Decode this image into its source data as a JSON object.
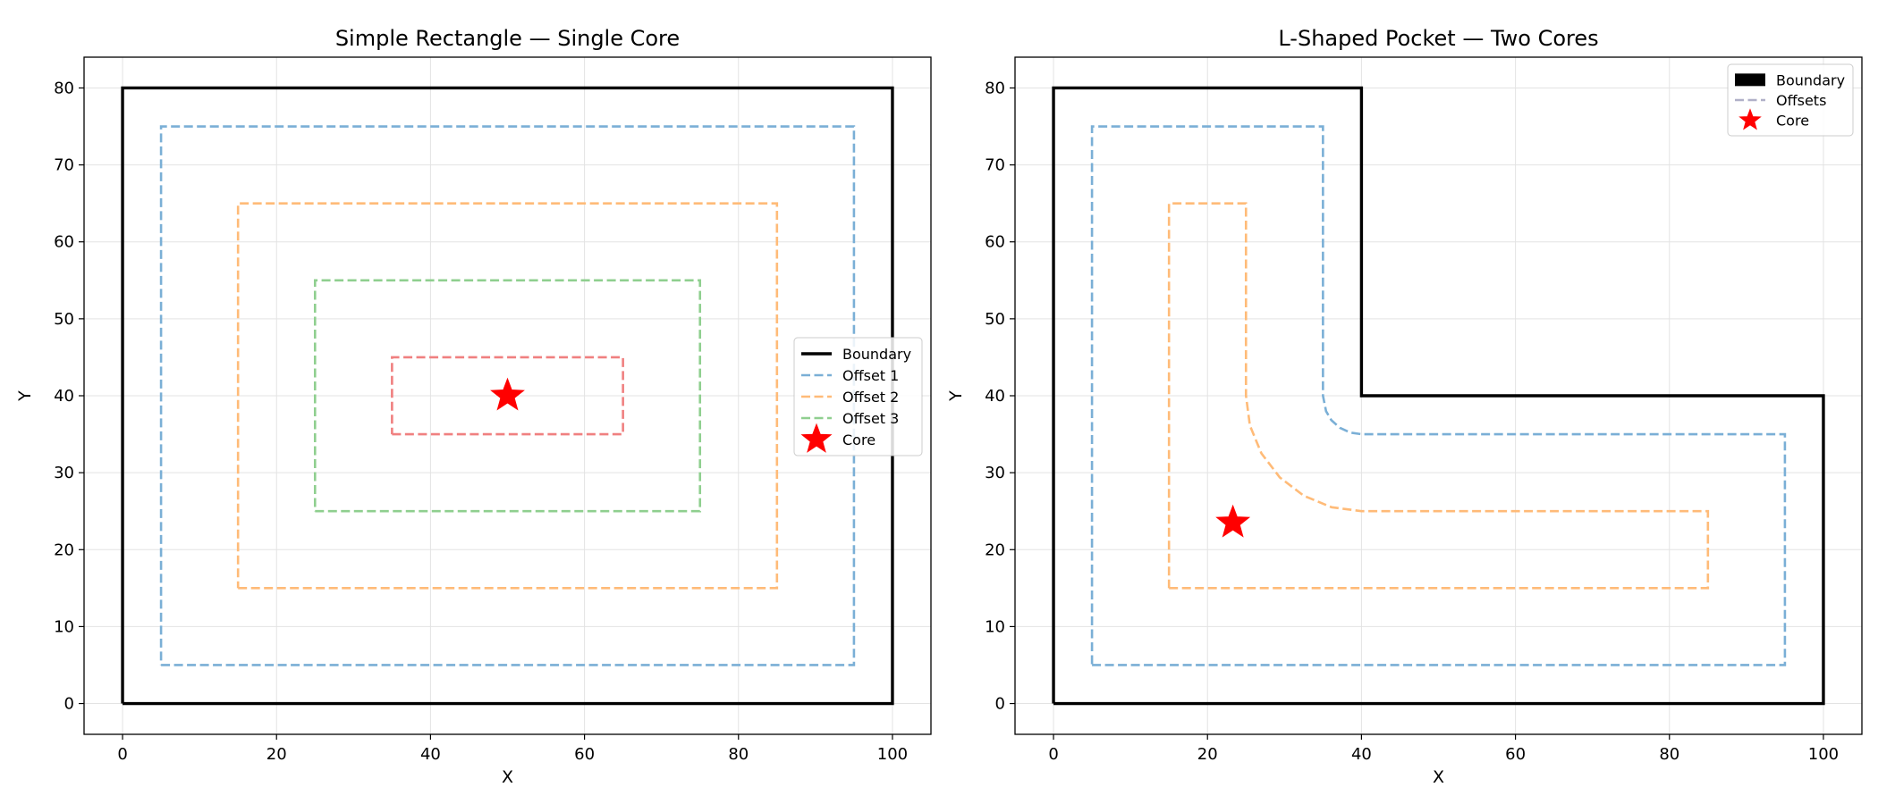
{
  "chart_data": [
    {
      "type": "line",
      "title": "Simple Rectangle — Single Core",
      "xlabel": "X",
      "ylabel": "Y",
      "xlim": [
        -5,
        105
      ],
      "ylim": [
        -4,
        84
      ],
      "xticks": [
        0,
        20,
        40,
        60,
        80,
        100
      ],
      "yticks": [
        0,
        10,
        20,
        30,
        40,
        50,
        60,
        70,
        80
      ],
      "grid": true,
      "legend_position": "right",
      "series": [
        {
          "name": "Boundary",
          "color": "#000000",
          "style": "solid",
          "points": [
            [
              0,
              0
            ],
            [
              100,
              0
            ],
            [
              100,
              80
            ],
            [
              0,
              80
            ],
            [
              0,
              0
            ]
          ]
        },
        {
          "name": "Offset 1",
          "color": "#7aafd6",
          "style": "dashed",
          "points": [
            [
              5,
              5
            ],
            [
              95,
              5
            ],
            [
              95,
              75
            ],
            [
              5,
              75
            ],
            [
              5,
              5
            ]
          ]
        },
        {
          "name": "Offset 2",
          "color": "#ffbb78",
          "style": "dashed",
          "points": [
            [
              15,
              15
            ],
            [
              85,
              15
            ],
            [
              85,
              65
            ],
            [
              15,
              65
            ],
            [
              15,
              15
            ]
          ]
        },
        {
          "name": "Offset 3",
          "color": "#8fcf8f",
          "style": "dashed",
          "points": [
            [
              25,
              25
            ],
            [
              75,
              25
            ],
            [
              75,
              55
            ],
            [
              25,
              55
            ],
            [
              25,
              25
            ]
          ]
        },
        {
          "name": "",
          "color": "#f08080",
          "style": "dashed",
          "points": [
            [
              35,
              35
            ],
            [
              65,
              35
            ],
            [
              65,
              45
            ],
            [
              35,
              45
            ],
            [
              35,
              35
            ]
          ]
        }
      ],
      "markers": [
        {
          "name": "Core",
          "color": "#ff0000",
          "shape": "star",
          "x": 50,
          "y": 40
        }
      ]
    },
    {
      "type": "line",
      "title": "L-Shaped Pocket — Two Cores",
      "xlabel": "X",
      "ylabel": "Y",
      "xlim": [
        -5,
        105
      ],
      "ylim": [
        -4,
        84
      ],
      "xticks": [
        0,
        20,
        40,
        60,
        80,
        100
      ],
      "yticks": [
        0,
        10,
        20,
        30,
        40,
        50,
        60,
        70,
        80
      ],
      "grid": true,
      "legend_position": "top-right",
      "series": [
        {
          "name": "Boundary",
          "color": "#000000",
          "style": "solid",
          "points": [
            [
              0,
              0
            ],
            [
              100,
              0
            ],
            [
              100,
              40
            ],
            [
              40,
              40
            ],
            [
              40,
              80
            ],
            [
              0,
              80
            ],
            [
              0,
              0
            ]
          ]
        },
        {
          "name": "Offsets",
          "color": "#7aafd6",
          "style": "dashed",
          "points": [
            [
              5,
              5
            ],
            [
              95,
              5
            ],
            [
              95,
              35
            ],
            [
              40,
              35
            ],
            [
              38.54,
              35.21
            ],
            [
              37.2,
              35.83
            ],
            [
              36.09,
              36.82
            ],
            [
              35.4,
              38.0
            ],
            [
              35,
              40
            ],
            [
              35,
              75
            ],
            [
              5,
              75
            ],
            [
              5,
              5
            ]
          ]
        },
        {
          "name": "",
          "color": "#ffbb78",
          "style": "dashed",
          "points": [
            [
              15,
              15
            ],
            [
              85,
              15
            ],
            [
              85,
              25
            ],
            [
              40,
              25
            ],
            [
              36.12,
              25.51
            ],
            [
              32.5,
              27.01
            ],
            [
              29.39,
              29.39
            ],
            [
              27.01,
              32.5
            ],
            [
              25.51,
              36.12
            ],
            [
              25,
              40
            ],
            [
              25,
              65
            ],
            [
              15,
              65
            ],
            [
              15,
              15
            ]
          ]
        }
      ],
      "markers": [
        {
          "name": "Core",
          "color": "#ff0000",
          "shape": "star",
          "x": 23.3,
          "y": 23.5
        }
      ]
    }
  ]
}
